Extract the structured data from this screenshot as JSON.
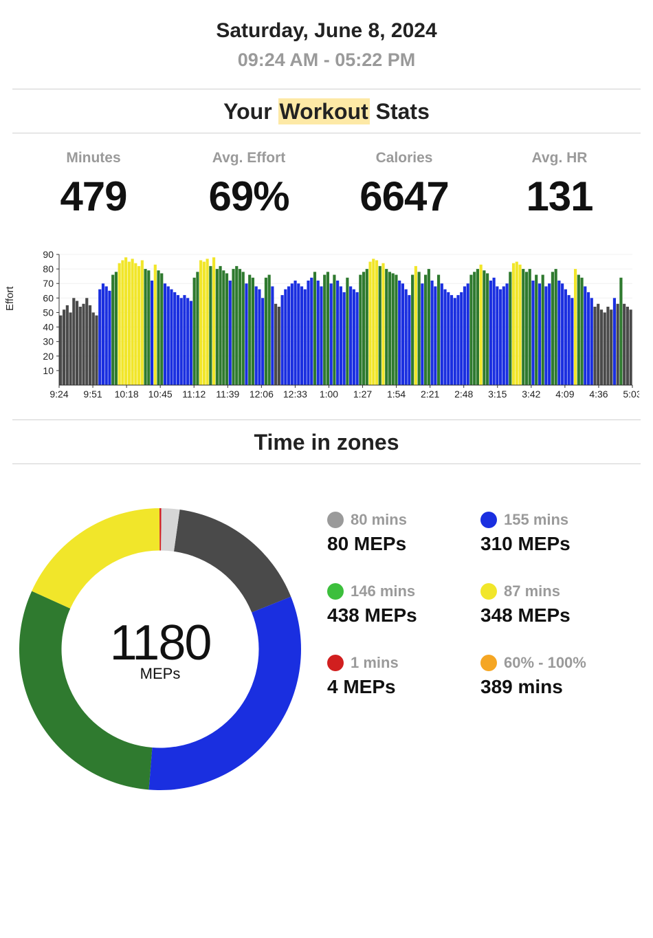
{
  "header": {
    "date": "Saturday, June 8, 2024",
    "time_range": "09:24 AM -   05:22 PM"
  },
  "stats_title": {
    "pre": "Your ",
    "highlight": "Workout",
    "post": " Stats"
  },
  "stats": [
    {
      "label": "Minutes",
      "value": "479"
    },
    {
      "label": "Avg. Effort",
      "value": "69%"
    },
    {
      "label": "Calories",
      "value": "6647"
    },
    {
      "label": "Avg. HR",
      "value": "131"
    }
  ],
  "effort_chart": {
    "type": "bar",
    "y_axis_title": "Effort",
    "ylim": [
      0,
      90
    ],
    "ytick_step": 10,
    "yticks": [
      10,
      20,
      30,
      40,
      50,
      60,
      70,
      80,
      90
    ],
    "grid_color": "#f0f0f0",
    "axis_color": "#333333",
    "tick_font_size": 14,
    "background_color": "#ffffff",
    "bar_gap_ratio": 0.12,
    "colors": {
      "gray": "#4a4a4a",
      "blue": "#1a2fe0",
      "green": "#2f7a2f",
      "yellow": "#f1e62a",
      "red": "#d11f1f",
      "lightgray": "#d6d6d6"
    },
    "xticks": [
      "9:24",
      "9:51",
      "10:18",
      "10:45",
      "11:12",
      "11:39",
      "12:06",
      "12:33",
      "1:00",
      "1:27",
      "1:54",
      "2:21",
      "2:48",
      "3:15",
      "3:42",
      "4:09",
      "4:36",
      "5:03"
    ],
    "bars": [
      {
        "c": "gray",
        "v": 48
      },
      {
        "c": "gray",
        "v": 52
      },
      {
        "c": "gray",
        "v": 55
      },
      {
        "c": "gray",
        "v": 50
      },
      {
        "c": "gray",
        "v": 60
      },
      {
        "c": "gray",
        "v": 58
      },
      {
        "c": "gray",
        "v": 54
      },
      {
        "c": "gray",
        "v": 56
      },
      {
        "c": "gray",
        "v": 60
      },
      {
        "c": "gray",
        "v": 55
      },
      {
        "c": "gray",
        "v": 50
      },
      {
        "c": "gray",
        "v": 48
      },
      {
        "c": "blue",
        "v": 66
      },
      {
        "c": "blue",
        "v": 70
      },
      {
        "c": "blue",
        "v": 68
      },
      {
        "c": "blue",
        "v": 65
      },
      {
        "c": "green",
        "v": 76
      },
      {
        "c": "green",
        "v": 78
      },
      {
        "c": "yellow",
        "v": 84
      },
      {
        "c": "yellow",
        "v": 86
      },
      {
        "c": "yellow",
        "v": 88
      },
      {
        "c": "yellow",
        "v": 85
      },
      {
        "c": "yellow",
        "v": 87
      },
      {
        "c": "yellow",
        "v": 84
      },
      {
        "c": "yellow",
        "v": 82
      },
      {
        "c": "yellow",
        "v": 86
      },
      {
        "c": "green",
        "v": 80
      },
      {
        "c": "green",
        "v": 79
      },
      {
        "c": "blue",
        "v": 72
      },
      {
        "c": "yellow",
        "v": 83
      },
      {
        "c": "green",
        "v": 79
      },
      {
        "c": "green",
        "v": 77
      },
      {
        "c": "blue",
        "v": 70
      },
      {
        "c": "blue",
        "v": 68
      },
      {
        "c": "blue",
        "v": 66
      },
      {
        "c": "blue",
        "v": 64
      },
      {
        "c": "blue",
        "v": 62
      },
      {
        "c": "blue",
        "v": 60
      },
      {
        "c": "blue",
        "v": 62
      },
      {
        "c": "blue",
        "v": 60
      },
      {
        "c": "blue",
        "v": 58
      },
      {
        "c": "green",
        "v": 74
      },
      {
        "c": "green",
        "v": 78
      },
      {
        "c": "yellow",
        "v": 86
      },
      {
        "c": "yellow",
        "v": 85
      },
      {
        "c": "yellow",
        "v": 87
      },
      {
        "c": "green",
        "v": 82
      },
      {
        "c": "yellow",
        "v": 88
      },
      {
        "c": "green",
        "v": 80
      },
      {
        "c": "green",
        "v": 82
      },
      {
        "c": "green",
        "v": 79
      },
      {
        "c": "green",
        "v": 77
      },
      {
        "c": "blue",
        "v": 72
      },
      {
        "c": "green",
        "v": 80
      },
      {
        "c": "green",
        "v": 82
      },
      {
        "c": "green",
        "v": 80
      },
      {
        "c": "green",
        "v": 78
      },
      {
        "c": "blue",
        "v": 70
      },
      {
        "c": "green",
        "v": 76
      },
      {
        "c": "green",
        "v": 74
      },
      {
        "c": "blue",
        "v": 68
      },
      {
        "c": "blue",
        "v": 66
      },
      {
        "c": "blue",
        "v": 60
      },
      {
        "c": "green",
        "v": 74
      },
      {
        "c": "green",
        "v": 76
      },
      {
        "c": "blue",
        "v": 68
      },
      {
        "c": "gray",
        "v": 56
      },
      {
        "c": "gray",
        "v": 54
      },
      {
        "c": "blue",
        "v": 62
      },
      {
        "c": "blue",
        "v": 66
      },
      {
        "c": "blue",
        "v": 68
      },
      {
        "c": "blue",
        "v": 70
      },
      {
        "c": "blue",
        "v": 72
      },
      {
        "c": "blue",
        "v": 70
      },
      {
        "c": "blue",
        "v": 68
      },
      {
        "c": "blue",
        "v": 66
      },
      {
        "c": "blue",
        "v": 72
      },
      {
        "c": "blue",
        "v": 74
      },
      {
        "c": "green",
        "v": 78
      },
      {
        "c": "blue",
        "v": 72
      },
      {
        "c": "blue",
        "v": 68
      },
      {
        "c": "green",
        "v": 76
      },
      {
        "c": "green",
        "v": 78
      },
      {
        "c": "blue",
        "v": 70
      },
      {
        "c": "green",
        "v": 76
      },
      {
        "c": "blue",
        "v": 72
      },
      {
        "c": "blue",
        "v": 68
      },
      {
        "c": "blue",
        "v": 64
      },
      {
        "c": "green",
        "v": 74
      },
      {
        "c": "blue",
        "v": 68
      },
      {
        "c": "blue",
        "v": 66
      },
      {
        "c": "blue",
        "v": 64
      },
      {
        "c": "green",
        "v": 76
      },
      {
        "c": "green",
        "v": 78
      },
      {
        "c": "green",
        "v": 80
      },
      {
        "c": "yellow",
        "v": 85
      },
      {
        "c": "yellow",
        "v": 87
      },
      {
        "c": "yellow",
        "v": 86
      },
      {
        "c": "green",
        "v": 82
      },
      {
        "c": "yellow",
        "v": 84
      },
      {
        "c": "green",
        "v": 80
      },
      {
        "c": "green",
        "v": 78
      },
      {
        "c": "green",
        "v": 77
      },
      {
        "c": "green",
        "v": 76
      },
      {
        "c": "blue",
        "v": 72
      },
      {
        "c": "blue",
        "v": 70
      },
      {
        "c": "blue",
        "v": 66
      },
      {
        "c": "blue",
        "v": 62
      },
      {
        "c": "green",
        "v": 76
      },
      {
        "c": "yellow",
        "v": 82
      },
      {
        "c": "green",
        "v": 78
      },
      {
        "c": "blue",
        "v": 70
      },
      {
        "c": "green",
        "v": 76
      },
      {
        "c": "green",
        "v": 80
      },
      {
        "c": "blue",
        "v": 72
      },
      {
        "c": "blue",
        "v": 68
      },
      {
        "c": "green",
        "v": 76
      },
      {
        "c": "blue",
        "v": 70
      },
      {
        "c": "blue",
        "v": 66
      },
      {
        "c": "blue",
        "v": 64
      },
      {
        "c": "blue",
        "v": 62
      },
      {
        "c": "blue",
        "v": 60
      },
      {
        "c": "blue",
        "v": 62
      },
      {
        "c": "blue",
        "v": 64
      },
      {
        "c": "blue",
        "v": 68
      },
      {
        "c": "blue",
        "v": 70
      },
      {
        "c": "green",
        "v": 76
      },
      {
        "c": "green",
        "v": 78
      },
      {
        "c": "green",
        "v": 80
      },
      {
        "c": "yellow",
        "v": 83
      },
      {
        "c": "green",
        "v": 79
      },
      {
        "c": "green",
        "v": 77
      },
      {
        "c": "blue",
        "v": 72
      },
      {
        "c": "blue",
        "v": 74
      },
      {
        "c": "blue",
        "v": 68
      },
      {
        "c": "blue",
        "v": 66
      },
      {
        "c": "blue",
        "v": 68
      },
      {
        "c": "blue",
        "v": 70
      },
      {
        "c": "green",
        "v": 78
      },
      {
        "c": "yellow",
        "v": 84
      },
      {
        "c": "yellow",
        "v": 85
      },
      {
        "c": "yellow",
        "v": 83
      },
      {
        "c": "green",
        "v": 80
      },
      {
        "c": "green",
        "v": 78
      },
      {
        "c": "green",
        "v": 80
      },
      {
        "c": "blue",
        "v": 72
      },
      {
        "c": "green",
        "v": 76
      },
      {
        "c": "blue",
        "v": 70
      },
      {
        "c": "green",
        "v": 76
      },
      {
        "c": "blue",
        "v": 68
      },
      {
        "c": "blue",
        "v": 70
      },
      {
        "c": "green",
        "v": 78
      },
      {
        "c": "green",
        "v": 80
      },
      {
        "c": "blue",
        "v": 72
      },
      {
        "c": "blue",
        "v": 70
      },
      {
        "c": "blue",
        "v": 66
      },
      {
        "c": "blue",
        "v": 62
      },
      {
        "c": "blue",
        "v": 60
      },
      {
        "c": "yellow",
        "v": 80
      },
      {
        "c": "green",
        "v": 76
      },
      {
        "c": "green",
        "v": 74
      },
      {
        "c": "blue",
        "v": 68
      },
      {
        "c": "blue",
        "v": 64
      },
      {
        "c": "blue",
        "v": 60
      },
      {
        "c": "gray",
        "v": 54
      },
      {
        "c": "gray",
        "v": 56
      },
      {
        "c": "gray",
        "v": 52
      },
      {
        "c": "gray",
        "v": 50
      },
      {
        "c": "gray",
        "v": 54
      },
      {
        "c": "gray",
        "v": 52
      },
      {
        "c": "blue",
        "v": 60
      },
      {
        "c": "gray",
        "v": 56
      },
      {
        "c": "green",
        "v": 74
      },
      {
        "c": "gray",
        "v": 56
      },
      {
        "c": "gray",
        "v": 54
      },
      {
        "c": "gray",
        "v": 52
      }
    ]
  },
  "zones_title": "Time in zones",
  "donut": {
    "center_value": "1180",
    "center_unit": "MEPs",
    "total_mins": 479,
    "thickness_ratio": 0.3,
    "slices": [
      {
        "key": "gray",
        "color": "#4a4a4a",
        "mins": 80
      },
      {
        "key": "blue",
        "color": "#1a2fe0",
        "mins": 155
      },
      {
        "key": "green",
        "color": "#2f7a2f",
        "mins": 146
      },
      {
        "key": "yellow",
        "color": "#f1e62a",
        "mins": 87
      },
      {
        "key": "red",
        "color": "#d11f1f",
        "mins": 1
      },
      {
        "key": "lightgray",
        "color": "#d6d6d6",
        "mins": 10
      }
    ],
    "start_angle_deg": 8
  },
  "zone_items": [
    {
      "dot": "#9a9a9a",
      "top": "80 mins",
      "bottom": "80 MEPs"
    },
    {
      "dot": "#1a2fe0",
      "top": "155 mins",
      "bottom": "310 MEPs"
    },
    {
      "dot": "#3cbf3c",
      "top": "146 mins",
      "bottom": "438 MEPs"
    },
    {
      "dot": "#f1e62a",
      "top": "87 mins",
      "bottom": "348 MEPs"
    },
    {
      "dot": "#d11f1f",
      "top": "1 mins",
      "bottom": "4 MEPs"
    },
    {
      "dot": "#f5a623",
      "top": "60% - 100%",
      "bottom": "389 mins"
    }
  ]
}
